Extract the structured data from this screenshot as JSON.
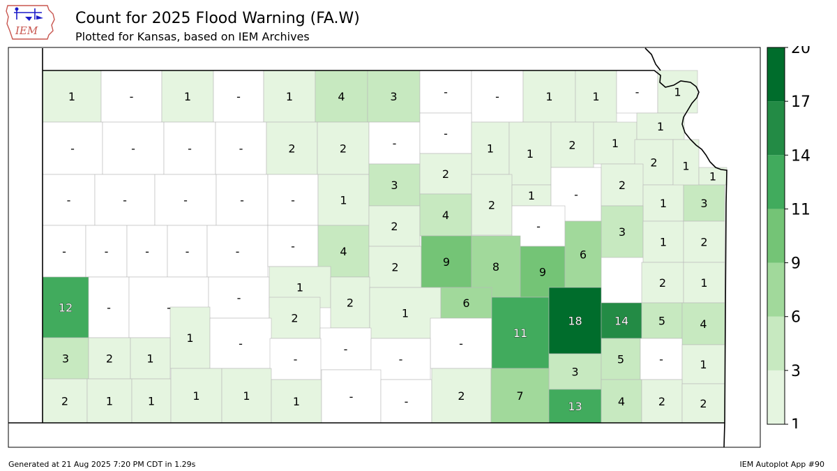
{
  "title": "Count for 2025 Flood Warning (FA.W)",
  "subtitle": "Plotted for Kansas, based on IEM Archives",
  "logo_text": "IEM",
  "footer_left": "Generated at 21 Aug 2025 7:20 PM CDT in 1.29s",
  "footer_right": "IEM Autoplot App #90",
  "colorbar": {
    "ticks": [
      "1",
      "3",
      "6",
      "9",
      "11",
      "14",
      "17",
      "20"
    ],
    "colors": [
      "#e5f5e0",
      "#c7e9c0",
      "#a1d99b",
      "#74c476",
      "#41ab5d",
      "#238b45",
      "#006d2c"
    ]
  },
  "map_data": {
    "missing_label": "-",
    "counties": [
      {
        "v": "1"
      },
      {
        "v": "-"
      },
      {
        "v": "1"
      },
      {
        "v": "-"
      },
      {
        "v": "1"
      },
      {
        "v": "4"
      },
      {
        "v": "3"
      },
      {
        "v": "-"
      },
      {
        "v": "-"
      },
      {
        "v": "1"
      },
      {
        "v": "1"
      },
      {
        "v": "-"
      },
      {
        "v": "1"
      },
      {
        "v": "-"
      },
      {
        "v": "-"
      },
      {
        "v": "-"
      },
      {
        "v": "-"
      },
      {
        "v": "2"
      },
      {
        "v": "2"
      },
      {
        "v": "-"
      },
      {
        "v": "-"
      },
      {
        "v": "1"
      },
      {
        "v": "1"
      },
      {
        "v": "2"
      },
      {
        "v": "1"
      },
      {
        "v": "1"
      },
      {
        "v": "2"
      },
      {
        "v": "1"
      },
      {
        "v": "1"
      },
      {
        "v": "-"
      },
      {
        "v": "-"
      },
      {
        "v": "-"
      },
      {
        "v": "-"
      },
      {
        "v": "-"
      },
      {
        "v": "1"
      },
      {
        "v": "3"
      },
      {
        "v": "2"
      },
      {
        "v": "2"
      },
      {
        "v": "1"
      },
      {
        "v": "-"
      },
      {
        "v": "2"
      },
      {
        "v": "1"
      },
      {
        "v": "3"
      },
      {
        "v": "-"
      },
      {
        "v": "-"
      },
      {
        "v": "-"
      },
      {
        "v": "-"
      },
      {
        "v": "-"
      },
      {
        "v": "-"
      },
      {
        "v": "4"
      },
      {
        "v": "2"
      },
      {
        "v": "4"
      },
      {
        "v": "-"
      },
      {
        "v": "3"
      },
      {
        "v": "1"
      },
      {
        "v": "2"
      },
      {
        "v": "2"
      },
      {
        "v": "9"
      },
      {
        "v": "8"
      },
      {
        "v": "9"
      },
      {
        "v": "12"
      },
      {
        "v": "-"
      },
      {
        "v": "-"
      },
      {
        "v": "-"
      },
      {
        "v": "1"
      },
      {
        "v": "2"
      },
      {
        "v": "1"
      },
      {
        "v": "6"
      },
      {
        "v": "6"
      },
      {
        "v": "2"
      },
      {
        "v": "1"
      },
      {
        "v": "2"
      },
      {
        "v": "-"
      },
      {
        "v": "1"
      },
      {
        "v": "-"
      },
      {
        "v": "11"
      },
      {
        "v": "18"
      },
      {
        "v": "14"
      },
      {
        "v": "5"
      },
      {
        "v": "4"
      },
      {
        "v": "3"
      },
      {
        "v": "2"
      },
      {
        "v": "1"
      },
      {
        "v": "-"
      },
      {
        "v": "-"
      },
      {
        "v": "-"
      },
      {
        "v": "3"
      },
      {
        "v": "5"
      },
      {
        "v": "-"
      },
      {
        "v": "1"
      },
      {
        "v": "2"
      },
      {
        "v": "1"
      },
      {
        "v": "1"
      },
      {
        "v": "1"
      },
      {
        "v": "1"
      },
      {
        "v": "1"
      },
      {
        "v": "-"
      },
      {
        "v": "-"
      },
      {
        "v": "2"
      },
      {
        "v": "7"
      },
      {
        "v": "13"
      },
      {
        "v": "4"
      },
      {
        "v": "2"
      },
      {
        "v": "2"
      },
      {
        "v": "2"
      }
    ]
  }
}
